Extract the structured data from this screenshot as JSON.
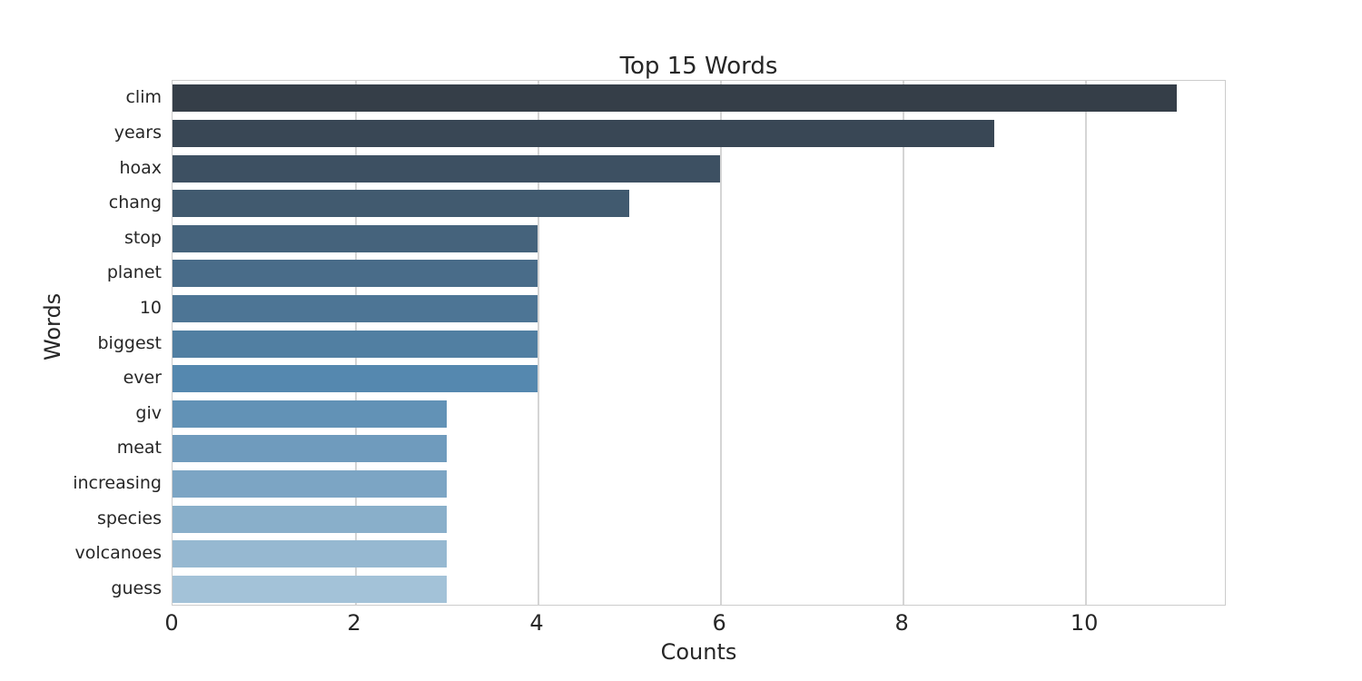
{
  "chart_data": {
    "type": "bar",
    "orientation": "horizontal",
    "title": "Top 15 Words",
    "xlabel": "Counts",
    "ylabel": "Words",
    "categories": [
      "clim",
      "years",
      "hoax",
      "chang",
      "stop",
      "planet",
      "10",
      "biggest",
      "ever",
      "giv",
      "meat",
      "increasing",
      "species",
      "volcanoes",
      "guess"
    ],
    "values": [
      11,
      9,
      6,
      5,
      4,
      4,
      4,
      4,
      4,
      3,
      3,
      3,
      3,
      3,
      3
    ],
    "xlim": [
      0,
      11.55
    ],
    "xticks": [
      0,
      2,
      4,
      6,
      8,
      10
    ],
    "grid": true,
    "legend": "none",
    "bar_colors": [
      "#353e48",
      "#394755",
      "#3d5062",
      "#415a6f",
      "#45637c",
      "#496c89",
      "#4d7595",
      "#517fa2",
      "#5588af",
      "#6292b6",
      "#6f9bbd",
      "#7ca5c4",
      "#89afca",
      "#96b8d1",
      "#a3c2d8"
    ],
    "grid_color": "#d5d5d5",
    "axes_edge_color": "#cccccc",
    "text_color": "#262626",
    "background_color": "#ffffff"
  }
}
